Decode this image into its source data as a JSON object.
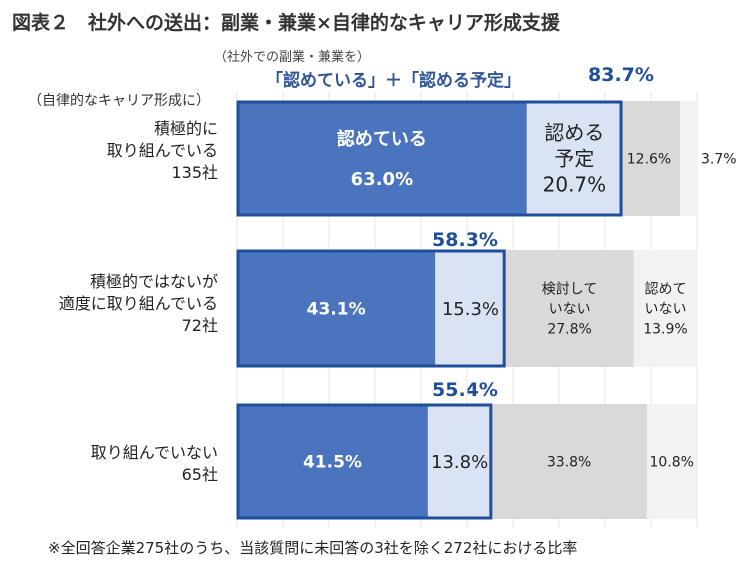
{
  "title": "図表２　社外への送出：副業・兼業×自律的なキャリア形成支援",
  "subcaption": "（社外での副業・兼業を）",
  "legend_line": "「認めている」＋「認める予定」",
  "legend_total": "83.7%",
  "side_caption": "（自律的なキャリア形成に）",
  "footnote": "※全回答企業275社のうち、当該質問に未回答の3社を除く272社における比率",
  "rows": [
    {
      "label_lines": [
        "積極的に",
        "取り組んでいる",
        "135社"
      ],
      "callout": ""
    },
    {
      "label_lines": [
        "積極的ではないが",
        "適度に取り組んでいる",
        "72社"
      ],
      "callout": "58.3%"
    },
    {
      "label_lines": [
        "取り組んでいない",
        "65社"
      ],
      "callout": "55.4%"
    }
  ],
  "colors": {
    "mitomete_iru": "#4a74bd",
    "mitomeru_yotei": "#dae3f4",
    "kento_shite_inai": "#d9d9d9",
    "mitomete_inai": "#f2f2f2",
    "highlight": "#1f4e9c"
  },
  "chart_data": {
    "type": "bar",
    "orientation": "horizontal",
    "stacked": true,
    "percent": true,
    "categories": [
      "積極的に取り組んでいる 135社",
      "積極的ではないが適度に取り組んでいる 72社",
      "取り組んでいない 65社"
    ],
    "series": [
      {
        "name": "認めている",
        "values": [
          63.0,
          43.1,
          41.5
        ],
        "labels": [
          [
            "認めている",
            "63.0%"
          ],
          [
            "43.1%"
          ],
          [
            "41.5%"
          ]
        ]
      },
      {
        "name": "認める予定",
        "values": [
          20.7,
          15.3,
          13.8
        ],
        "labels": [
          [
            "認める",
            "予定",
            "20.7%"
          ],
          [
            "15.3%"
          ],
          [
            "13.8%"
          ]
        ]
      },
      {
        "name": "検討していない",
        "values": [
          12.6,
          27.8,
          33.8
        ],
        "labels": [
          [
            "12.6%"
          ],
          [
            "検討して",
            "いない",
            "27.8%"
          ],
          [
            "33.8%"
          ]
        ]
      },
      {
        "name": "認めていない",
        "values": [
          3.7,
          13.9,
          10.8
        ],
        "labels": [
          [
            "3.7%"
          ],
          [
            "認めて",
            "いない",
            "13.9%"
          ],
          [
            "10.8%"
          ]
        ]
      }
    ],
    "highlight_totals": [
      83.7,
      58.3,
      55.4
    ],
    "xlim": [
      0,
      100
    ],
    "grid": true
  }
}
